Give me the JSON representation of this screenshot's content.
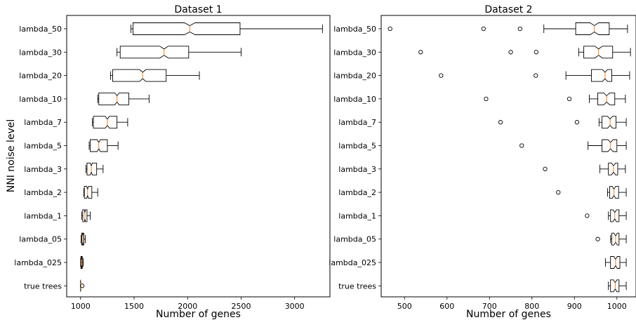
{
  "chart_data": [
    {
      "type": "boxplot",
      "title": "Dataset 1",
      "xlabel": "Number of genes",
      "ylabel": "NNI noise level",
      "xlim": [
        870,
        3330
      ],
      "xticks": [
        1000,
        1500,
        2000,
        2500,
        3000
      ],
      "categories": [
        "lambda_50",
        "lambda_30",
        "lambda_20",
        "lambda_10",
        "lambda_7",
        "lambda_5",
        "lambda_3",
        "lambda_2",
        "lambda_1",
        "lambda_05",
        "lambda_025",
        "true trees"
      ],
      "boxes": [
        {
          "min": 1470,
          "q1": 1490,
          "median": 2020,
          "q3": 2490,
          "max": 3260,
          "ci_low": 1970,
          "ci_high": 2070,
          "outliers": []
        },
        {
          "min": 1340,
          "q1": 1370,
          "median": 1780,
          "q3": 2010,
          "max": 2500,
          "ci_low": 1740,
          "ci_high": 1820,
          "outliers": []
        },
        {
          "min": 1280,
          "q1": 1300,
          "median": 1580,
          "q3": 1800,
          "max": 2110,
          "ci_low": 1550,
          "ci_high": 1610,
          "outliers": []
        },
        {
          "min": 1160,
          "q1": 1170,
          "median": 1340,
          "q3": 1450,
          "max": 1640,
          "ci_low": 1320,
          "ci_high": 1360,
          "outliers": []
        },
        {
          "min": 1110,
          "q1": 1120,
          "median": 1250,
          "q3": 1340,
          "max": 1440,
          "ci_low": 1230,
          "ci_high": 1270,
          "outliers": []
        },
        {
          "min": 1080,
          "q1": 1090,
          "median": 1170,
          "q3": 1250,
          "max": 1350,
          "ci_low": 1155,
          "ci_high": 1185,
          "outliers": []
        },
        {
          "min": 1050,
          "q1": 1060,
          "median": 1100,
          "q3": 1150,
          "max": 1210,
          "ci_low": 1090,
          "ci_high": 1110,
          "outliers": []
        },
        {
          "min": 1030,
          "q1": 1035,
          "median": 1065,
          "q3": 1105,
          "max": 1160,
          "ci_low": 1057,
          "ci_high": 1073,
          "outliers": []
        },
        {
          "min": 1010,
          "q1": 1020,
          "median": 1040,
          "q3": 1060,
          "max": 1090,
          "ci_low": 1035,
          "ci_high": 1045,
          "outliers": []
        },
        {
          "min": 1005,
          "q1": 1010,
          "median": 1020,
          "q3": 1030,
          "max": 1045,
          "ci_low": 1017,
          "ci_high": 1023,
          "outliers": []
        },
        {
          "min": 1000,
          "q1": 1003,
          "median": 1009,
          "q3": 1016,
          "max": 1025,
          "ci_low": 1007,
          "ci_high": 1011,
          "outliers": []
        },
        {
          "min": 1000,
          "q1": 1000,
          "median": 1000,
          "q3": 1000,
          "max": 1000,
          "ci_low": 1000,
          "ci_high": 1000,
          "outliers": [
            1015
          ]
        }
      ]
    },
    {
      "type": "boxplot",
      "title": "Dataset 2",
      "xlabel": "Number of genes",
      "ylabel": "",
      "xlim": [
        445,
        1045
      ],
      "xticks": [
        500,
        600,
        700,
        800,
        900,
        1000
      ],
      "categories": [
        "lambda_50",
        "lambda_30",
        "lambda_20",
        "lambda_10",
        "lambda_7",
        "lambda_5",
        "lambda_3",
        "lambda_2",
        "lambda_1",
        "lambda_05",
        "lambda_025",
        "true trees"
      ],
      "boxes": [
        {
          "min": 828,
          "q1": 903,
          "median": 947,
          "q3": 982,
          "max": 1025,
          "ci_low": 937,
          "ci_high": 957,
          "outliers": [
            466,
            686,
            772
          ]
        },
        {
          "min": 910,
          "q1": 922,
          "median": 957,
          "q3": 990,
          "max": 1032,
          "ci_low": 948,
          "ci_high": 966,
          "outliers": [
            538,
            750,
            810
          ]
        },
        {
          "min": 880,
          "q1": 940,
          "median": 972,
          "q3": 988,
          "max": 1030,
          "ci_low": 966,
          "ci_high": 978,
          "outliers": [
            586,
            809
          ]
        },
        {
          "min": 935,
          "q1": 955,
          "median": 976,
          "q3": 995,
          "max": 1020,
          "ci_low": 969,
          "ci_high": 983,
          "outliers": [
            692,
            888
          ]
        },
        {
          "min": 958,
          "q1": 965,
          "median": 984,
          "q3": 998,
          "max": 1022,
          "ci_low": 978,
          "ci_high": 990,
          "outliers": [
            726,
            906
          ]
        },
        {
          "min": 932,
          "q1": 965,
          "median": 985,
          "q3": 1000,
          "max": 1022,
          "ci_low": 979,
          "ci_high": 991,
          "outliers": [
            776
          ]
        },
        {
          "min": 960,
          "q1": 980,
          "median": 992,
          "q3": 1002,
          "max": 1020,
          "ci_low": 987,
          "ci_high": 997,
          "outliers": [
            831
          ]
        },
        {
          "min": 978,
          "q1": 983,
          "median": 993,
          "q3": 1004,
          "max": 1022,
          "ci_low": 989,
          "ci_high": 997,
          "outliers": [
            862
          ]
        },
        {
          "min": 980,
          "q1": 985,
          "median": 995,
          "q3": 1005,
          "max": 1022,
          "ci_low": 991,
          "ci_high": 999,
          "outliers": [
            930
          ]
        },
        {
          "min": 985,
          "q1": 988,
          "median": 997,
          "q3": 1005,
          "max": 1022,
          "ci_low": 993,
          "ci_high": 1001,
          "outliers": [
            955
          ]
        },
        {
          "min": 973,
          "q1": 985,
          "median": 997,
          "q3": 1007,
          "max": 1022,
          "ci_low": 993,
          "ci_high": 1001,
          "outliers": []
        },
        {
          "min": 980,
          "q1": 985,
          "median": 996,
          "q3": 1005,
          "max": 1022,
          "ci_low": 992,
          "ci_high": 1000,
          "outliers": []
        }
      ]
    }
  ]
}
